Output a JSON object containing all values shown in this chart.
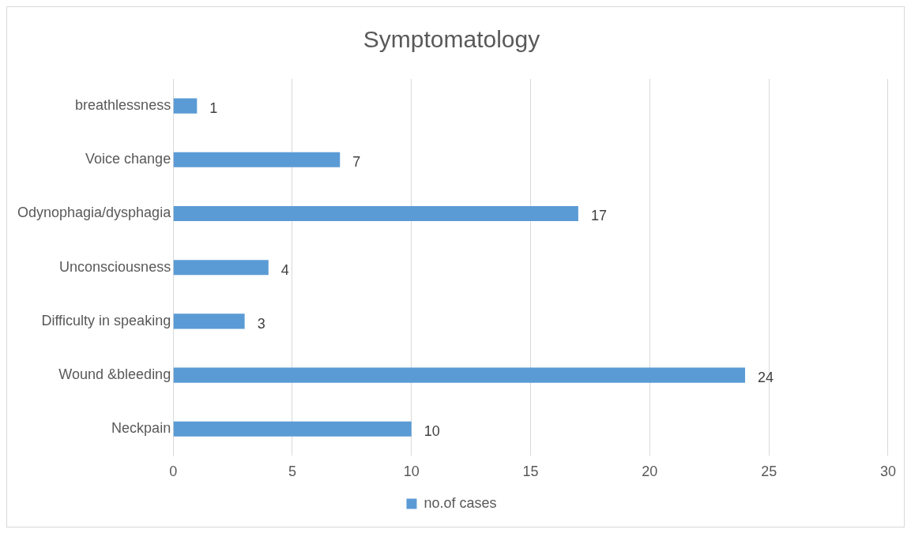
{
  "chart_data": {
    "type": "bar",
    "orientation": "horizontal",
    "title": "Symptomatology",
    "categories": [
      "breathlessness",
      "Voice change",
      "Odynophagia/dysphagia",
      "Unconsciousness",
      "Difficulty in speaking",
      "Wound &bleeding",
      "Neckpain"
    ],
    "series": [
      {
        "name": "no.of cases",
        "color": "#5b9bd5",
        "values": [
          1,
          7,
          17,
          4,
          3,
          24,
          10
        ]
      }
    ],
    "xlim": [
      0,
      30
    ],
    "xticks": [
      0,
      5,
      10,
      15,
      20,
      25,
      30
    ],
    "grid": "x",
    "legend": "bottom",
    "data_labels": true
  }
}
